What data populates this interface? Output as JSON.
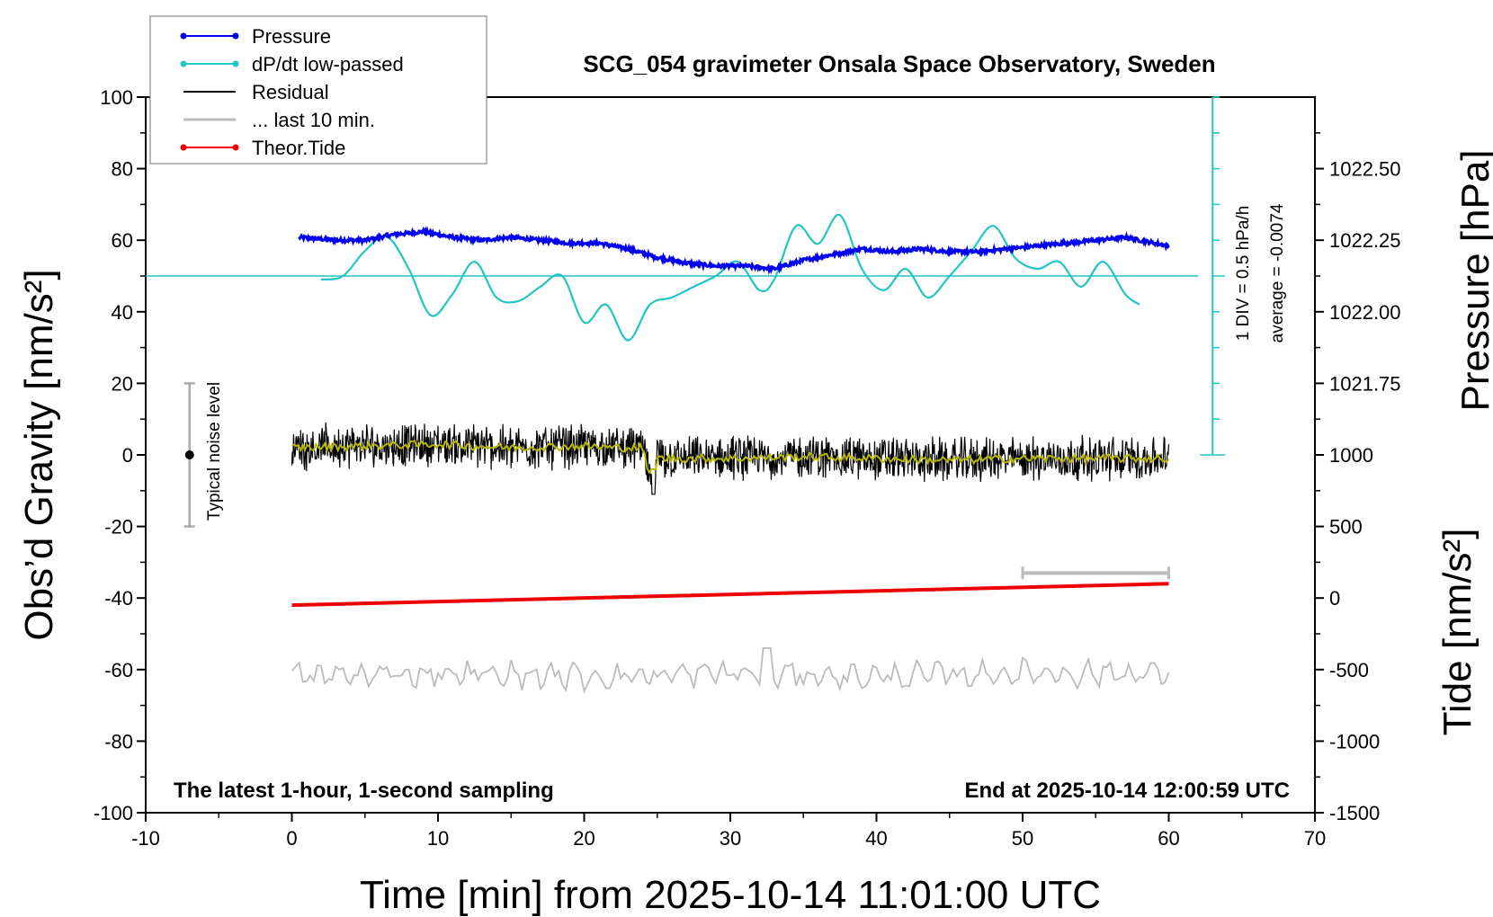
{
  "title": "SCG_054 gravimeter Onsala Space Observatory, Sweden",
  "footer_left": "The latest 1-hour, 1-second sampling",
  "footer_right": "End at 2025-10-14 12:00:59 UTC",
  "noise_label": "Typical noise level",
  "div_label": "1 DIV = 0.5 hPa/h",
  "average_label": "average = -0.0074",
  "legend": [
    {
      "label": "Pressure",
      "color": "#0000ee",
      "marker": true
    },
    {
      "label": "dP/dt low-passed",
      "color": "#22c4c4",
      "marker": true
    },
    {
      "label": "Residual",
      "color": "#000000",
      "marker": false
    },
    {
      "label": "... last 10 min.",
      "color": "#bbbbbb",
      "marker": false
    },
    {
      "label": "Theor.Tide",
      "color": "#ee0000",
      "marker": true
    }
  ],
  "colors": {
    "pressure": "#0000ee",
    "dpdt": "#22c4c4",
    "residual": "#000000",
    "residual_smooth": "#b8b800",
    "last10": "#bbbbbb",
    "tide": "#ee0000"
  },
  "chart_data": {
    "type": "line",
    "xlabel": "Time [min] from 2025-10-14 11:01:00 UTC",
    "ylabel_left": "Obs’d Gravity [nm/s²]",
    "ylabel_right_top": "Pressure [hPa]",
    "ylabel_right_bottom": "Tide [nm/s²]",
    "xlim": [
      -10,
      70
    ],
    "xticks": [
      -10,
      0,
      10,
      20,
      30,
      40,
      50,
      60,
      70
    ],
    "ylim": [
      -100,
      100
    ],
    "yticks": [
      100,
      80,
      60,
      40,
      20,
      0,
      -20,
      -40,
      -60,
      -80,
      -100
    ],
    "pressure_axis": {
      "ticks": [
        1022.5,
        1022.25,
        1022.0,
        1021.75
      ],
      "labels": [
        "1022.50",
        "1022.25",
        "1022.00",
        "1021.75"
      ],
      "gravity_at_1022": 40,
      "gravity_per_hpa": 80
    },
    "tide_axis": {
      "ticks": [
        1000,
        500,
        0,
        -500,
        -1000,
        -1500
      ],
      "labels": [
        "1000",
        "500",
        "0",
        "-500",
        "-1000",
        "-1500"
      ],
      "gravity_at_minus1500": -100,
      "gravity_per_unit": 0.04
    },
    "series": [
      {
        "name": "Pressure",
        "unit": "hPa",
        "x": [
          0.5,
          3,
          5,
          7,
          9,
          11,
          13,
          15,
          17,
          19,
          21,
          23,
          25,
          27,
          29,
          31,
          33,
          35,
          37,
          39,
          41,
          43,
          45,
          47,
          49,
          51,
          53,
          55,
          57,
          60
        ],
        "y": [
          1022.26,
          1022.25,
          1022.25,
          1022.27,
          1022.28,
          1022.26,
          1022.25,
          1022.26,
          1022.25,
          1022.24,
          1022.24,
          1022.22,
          1022.19,
          1022.17,
          1022.16,
          1022.16,
          1022.15,
          1022.18,
          1022.2,
          1022.22,
          1022.21,
          1022.22,
          1022.21,
          1022.21,
          1022.22,
          1022.23,
          1022.24,
          1022.25,
          1022.26,
          1022.23
        ]
      },
      {
        "name": "dP/dt low-passed",
        "unit": "nm/s² (plot scale)",
        "x": [
          2,
          3.5,
          5,
          6.5,
          8,
          9.5,
          11,
          12.5,
          14,
          15.5,
          17,
          18.5,
          20,
          21.5,
          23,
          24.5,
          26,
          27.5,
          29,
          30.5,
          32,
          33,
          34.5,
          36,
          37.5,
          39,
          40.5,
          42,
          43.5,
          45,
          46.5,
          48,
          49.5,
          51,
          52.5,
          54,
          55.5,
          57,
          58
        ],
        "y": [
          49,
          50,
          57,
          61,
          52,
          39,
          45,
          54,
          44,
          43,
          47,
          50,
          37,
          42,
          32,
          42,
          44,
          47,
          50,
          54,
          46,
          49,
          64,
          59,
          67,
          52,
          46,
          52,
          44,
          50,
          57,
          64,
          55,
          52,
          54,
          47,
          54,
          45,
          42
        ]
      },
      {
        "name": "Residual",
        "unit": "nm/s²",
        "x": [
          0,
          5,
          10,
          15,
          20,
          22,
          24,
          24.7,
          25,
          26,
          30,
          35,
          40,
          45,
          50,
          55,
          60
        ],
        "y": [
          2,
          2.5,
          3,
          2,
          2.5,
          2,
          2,
          -10,
          -1,
          -1,
          -1,
          -0.5,
          -1,
          -1.5,
          -1,
          -1,
          -1
        ]
      },
      {
        "name": "... last 10 min.",
        "unit": "nm/s²",
        "x": [
          0,
          10,
          20,
          30,
          40,
          50,
          60
        ],
        "y": [
          -62,
          -61,
          -62,
          -61,
          -62,
          -61,
          -61
        ]
      },
      {
        "name": "Theor.Tide",
        "unit": "nm/s²",
        "x": [
          0,
          60
        ],
        "y": [
          -50,
          100
        ]
      }
    ]
  }
}
